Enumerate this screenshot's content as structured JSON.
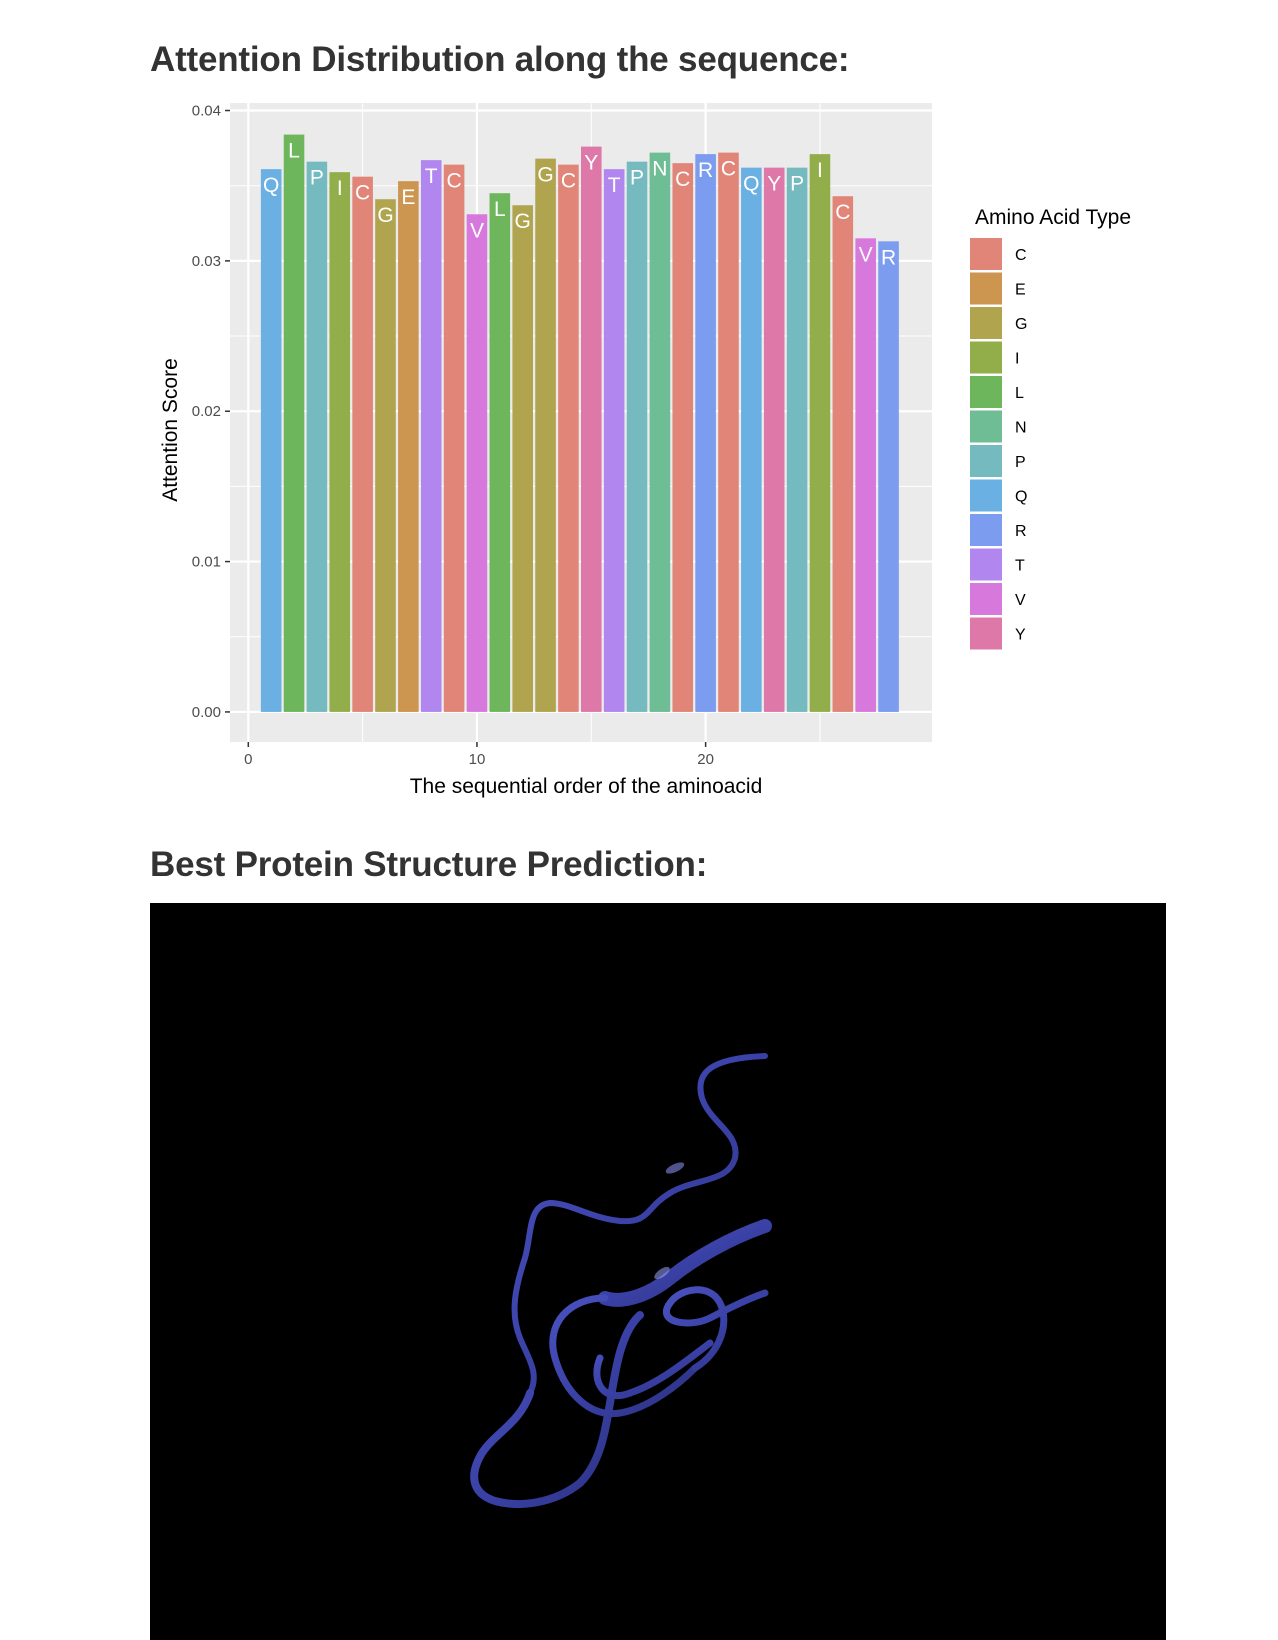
{
  "sections": {
    "attention_title": "Attention Distribution along the sequence:",
    "structure_title": "Best Protein Structure Prediction:"
  },
  "chart_data": {
    "type": "bar",
    "title": "",
    "xlabel": "The sequential order of the aminoacid",
    "ylabel": "Attention Score",
    "xlim": [
      -0.8,
      29.9
    ],
    "ylim": [
      -0.002,
      0.0405
    ],
    "x_ticks": [
      0,
      10,
      20
    ],
    "x_tick_labels": [
      "0",
      "10",
      "20"
    ],
    "y_ticks": [
      0,
      0.01,
      0.02,
      0.03,
      0.04
    ],
    "y_tick_labels": [
      "0.00",
      "0.01",
      "0.02",
      "0.03",
      "0.04"
    ],
    "grid": true,
    "legend": {
      "title": "Amino Acid Type",
      "placement": "right",
      "entries": [
        "C",
        "E",
        "G",
        "I",
        "L",
        "N",
        "P",
        "Q",
        "R",
        "T",
        "V",
        "Y"
      ],
      "colors": [
        "#E08577",
        "#CC9550",
        "#B1A44F",
        "#92AE4B",
        "#6EB65C",
        "#6FBD94",
        "#74BABF",
        "#6AB0E3",
        "#7C9CF0",
        "#B186EE",
        "#D779DC",
        "#DE78A8"
      ]
    },
    "x": [
      1,
      2,
      3,
      4,
      5,
      6,
      7,
      8,
      9,
      10,
      11,
      12,
      13,
      14,
      15,
      16,
      17,
      18,
      19,
      20,
      21,
      22,
      23,
      24,
      25,
      26,
      27,
      28
    ],
    "residues": [
      "Q",
      "L",
      "P",
      "I",
      "C",
      "G",
      "E",
      "T",
      "C",
      "V",
      "L",
      "G",
      "G",
      "C",
      "Y",
      "T",
      "P",
      "N",
      "C",
      "R",
      "C",
      "Q",
      "Y",
      "P",
      "I",
      "C",
      "V",
      "R"
    ],
    "values": [
      0.0361,
      0.0384,
      0.0366,
      0.0359,
      0.0356,
      0.0341,
      0.0353,
      0.0367,
      0.0364,
      0.0331,
      0.0345,
      0.0337,
      0.0368,
      0.0364,
      0.0376,
      0.0361,
      0.0366,
      0.0372,
      0.0365,
      0.0371,
      0.0372,
      0.0362,
      0.0362,
      0.0362,
      0.0371,
      0.0343,
      0.0315,
      0.0313
    ]
  },
  "structure_viewer": {
    "background": "#000000",
    "ribbon_color": "#3F46A8"
  }
}
